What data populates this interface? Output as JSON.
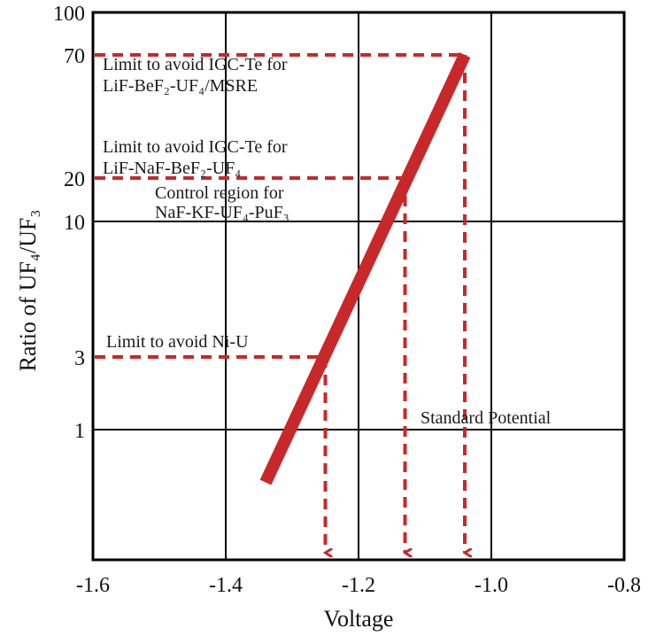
{
  "chart_data": {
    "type": "line",
    "title": "",
    "xlabel": "Voltage",
    "ylabel": "Ratio of UF₄/UF₃",
    "xlim": [
      -1.6,
      -0.8
    ],
    "x_ticks": [
      "-1.6",
      "-1.4",
      "-1.2",
      "-1.0",
      "-0.8"
    ],
    "y_ticks": [
      {
        "value": 1,
        "label": "1"
      },
      {
        "value": 3,
        "label": "3"
      },
      {
        "value": 10,
        "label": "10"
      },
      {
        "value": 20,
        "label": "20"
      },
      {
        "value": 70,
        "label": "70"
      },
      {
        "value": 100,
        "label": "100"
      }
    ],
    "y_scale": "log",
    "grid": true,
    "line_color": "#c8282a",
    "series": [
      {
        "x": [
          -1.34,
          -1.04
        ],
        "y": [
          0.45,
          70
        ]
      }
    ],
    "annotations": [
      {
        "name": "msre",
        "lines": [
          "Limit to avoid IGC-Te for",
          "LiF-BeF₂-UF₄/MSRE"
        ],
        "y": 70,
        "x_end": -1.04
      },
      {
        "name": "lif-naf",
        "lines": [
          "Limit to avoid IGC-Te for",
          "LiF-NaF-BeF₂-UF₄"
        ],
        "y": 20,
        "x_end": -1.13
      },
      {
        "name": "control",
        "lines": [
          "Control region for",
          "NaF-KF-UF₄-PuF₃"
        ]
      },
      {
        "name": "ni-u",
        "lines": [
          "Limit to avoid Ni-U"
        ],
        "y": 3,
        "x_end": -1.25
      },
      {
        "name": "standard",
        "lines": [
          "Standard Potential"
        ]
      }
    ]
  }
}
